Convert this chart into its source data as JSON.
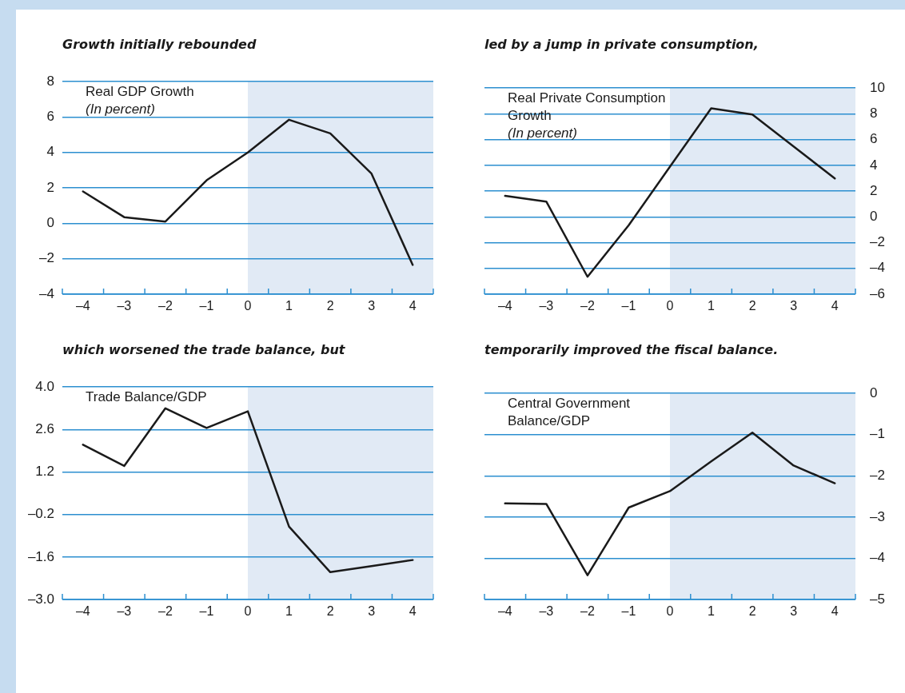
{
  "chart_data": [
    {
      "type": "line",
      "title": "Growth initially rebounded",
      "subtitle": "Real GDP Growth",
      "annotations": [
        "(In percent)"
      ],
      "x": [
        -4,
        -3,
        -2,
        -1,
        0,
        1,
        2,
        3,
        4
      ],
      "series": [
        {
          "color": "#1a1a1a",
          "values": [
            1.8,
            0.35,
            0.1,
            2.43,
            4.0,
            5.85,
            5.08,
            2.81,
            -2.35
          ]
        }
      ],
      "xlim": [
        -4.5,
        4.5
      ],
      "xticks": [
        {
          "value": -4.5,
          "label": null
        },
        {
          "value": -4,
          "label": "–4"
        },
        {
          "value": -3.5,
          "label": null
        },
        {
          "value": -3,
          "label": "–3"
        },
        {
          "value": -2.5,
          "label": null
        },
        {
          "value": -2,
          "label": "–2"
        },
        {
          "value": -1.5,
          "label": null
        },
        {
          "value": -1,
          "label": "–1"
        },
        {
          "value": -0.5,
          "label": null
        },
        0,
        {
          "value": 0.5,
          "label": null
        },
        1,
        {
          "value": 1.5,
          "label": null
        },
        2,
        {
          "value": 2.5,
          "label": null
        },
        3,
        {
          "value": 3.5,
          "label": null
        },
        4,
        {
          "value": 4.5,
          "label": null
        }
      ],
      "ylim": [
        -4,
        8
      ],
      "yticks": [
        {
          "value": -4,
          "label": "–4"
        },
        {
          "value": -2,
          "label": "–2"
        },
        0,
        2,
        4,
        6,
        8
      ],
      "bands": [
        {
          "axis": "x",
          "from": 0,
          "to": 4.5,
          "color": "#e1eaf5"
        }
      ],
      "grid": "y",
      "marker": "none",
      "line_style": "solid",
      "legend": false
    },
    {
      "type": "line",
      "title": "led by a jump in private consumption,",
      "subtitle": "Real Private Consumption Growth",
      "annotations": [
        "(In percent)"
      ],
      "x": [
        -4,
        -3,
        -2,
        -1,
        0,
        1,
        2,
        3,
        4
      ],
      "series": [
        {
          "color": "#1a1a1a",
          "values": [
            1.63,
            1.19,
            -4.65,
            -0.65,
            3.9,
            8.43,
            7.95,
            5.47,
            2.98
          ]
        }
      ],
      "xlim": [
        -4.5,
        4.5
      ],
      "xticks": [
        {
          "value": -4.5,
          "label": null
        },
        {
          "value": -4,
          "label": "–4"
        },
        {
          "value": -3.5,
          "label": null
        },
        {
          "value": -3,
          "label": "–3"
        },
        {
          "value": -2.5,
          "label": null
        },
        {
          "value": -2,
          "label": "–2"
        },
        {
          "value": -1.5,
          "label": null
        },
        {
          "value": -1,
          "label": "–1"
        },
        {
          "value": -0.5,
          "label": null
        },
        0,
        {
          "value": 0.5,
          "label": null
        },
        1,
        {
          "value": 1.5,
          "label": null
        },
        2,
        {
          "value": 2.5,
          "label": null
        },
        3,
        {
          "value": 3.5,
          "label": null
        },
        4,
        {
          "value": 4.5,
          "label": null
        }
      ],
      "ylim": [
        -6,
        10
      ],
      "yticks": [
        {
          "value": -6,
          "label": "–6"
        },
        {
          "value": -4,
          "label": "–4"
        },
        {
          "value": -2,
          "label": "–2"
        },
        0,
        2,
        4,
        6,
        8,
        10
      ],
      "bands": [
        {
          "axis": "x",
          "from": 0,
          "to": 4.5,
          "color": "#e1eaf5"
        }
      ],
      "grid": "y",
      "marker": "none",
      "line_style": "solid",
      "legend": false
    },
    {
      "type": "line",
      "title": "which worsened the trade balance, but",
      "subtitle": "Trade Balance/GDP",
      "x": [
        -4,
        -3,
        -2,
        -1,
        0,
        1,
        2,
        3,
        4
      ],
      "series": [
        {
          "color": "#1a1a1a",
          "values": [
            2.1,
            1.4,
            3.3,
            2.65,
            3.2,
            -0.6,
            -2.1,
            -1.9,
            -1.7
          ]
        }
      ],
      "xlim": [
        -4.5,
        4.5
      ],
      "xticks": [
        {
          "value": -4.5,
          "label": null
        },
        {
          "value": -4,
          "label": "–4"
        },
        {
          "value": -3.5,
          "label": null
        },
        {
          "value": -3,
          "label": "–3"
        },
        {
          "value": -2.5,
          "label": null
        },
        {
          "value": -2,
          "label": "–2"
        },
        {
          "value": -1.5,
          "label": null
        },
        {
          "value": -1,
          "label": "–1"
        },
        {
          "value": -0.5,
          "label": null
        },
        0,
        {
          "value": 0.5,
          "label": null
        },
        1,
        {
          "value": 1.5,
          "label": null
        },
        2,
        {
          "value": 2.5,
          "label": null
        },
        3,
        {
          "value": 3.5,
          "label": null
        },
        4,
        {
          "value": 4.5,
          "label": null
        }
      ],
      "ylim": [
        -3.0,
        4.0
      ],
      "yticks": [
        {
          "value": -3.0,
          "label": "–3.0"
        },
        {
          "value": -1.6,
          "label": "–1.6"
        },
        {
          "value": -0.2,
          "label": "–0.2"
        },
        1.2,
        2.6,
        {
          "value": 4.0,
          "label": "4.0"
        }
      ],
      "bands": [
        {
          "axis": "x",
          "from": 0,
          "to": 4.5,
          "color": "#e1eaf5"
        }
      ],
      "grid": "y",
      "marker": "none",
      "line_style": "solid",
      "legend": false
    },
    {
      "type": "line",
      "title": "temporarily improved the fiscal balance.",
      "subtitle": "Central Government Balance/GDP",
      "x": [
        -4,
        -3,
        -2,
        -1,
        0,
        1,
        2,
        3,
        4
      ],
      "series": [
        {
          "color": "#1a1a1a",
          "values": [
            -2.67,
            -2.68,
            -4.41,
            -2.77,
            -2.37,
            -1.65,
            -0.95,
            -1.75,
            -2.18
          ]
        }
      ],
      "xlim": [
        -4.5,
        4.5
      ],
      "xticks": [
        {
          "value": -4.5,
          "label": null
        },
        {
          "value": -4,
          "label": "–4"
        },
        {
          "value": -3.5,
          "label": null
        },
        {
          "value": -3,
          "label": "–3"
        },
        {
          "value": -2.5,
          "label": null
        },
        {
          "value": -2,
          "label": "–2"
        },
        {
          "value": -1.5,
          "label": null
        },
        {
          "value": -1,
          "label": "–1"
        },
        {
          "value": -0.5,
          "label": null
        },
        0,
        {
          "value": 0.5,
          "label": null
        },
        1,
        {
          "value": 1.5,
          "label": null
        },
        2,
        {
          "value": 2.5,
          "label": null
        },
        3,
        {
          "value": 3.5,
          "label": null
        },
        4,
        {
          "value": 4.5,
          "label": null
        }
      ],
      "ylim": [
        -5,
        0
      ],
      "yticks": [
        {
          "value": -5,
          "label": "–5"
        },
        {
          "value": -4,
          "label": "–4"
        },
        {
          "value": -3,
          "label": "–3"
        },
        {
          "value": -2,
          "label": "–2"
        },
        {
          "value": -1,
          "label": "–1"
        },
        0
      ],
      "bands": [
        {
          "axis": "x",
          "from": 0,
          "to": 4.5,
          "color": "#e1eaf5"
        }
      ],
      "grid": "y",
      "marker": "none",
      "line_style": "solid",
      "legend": false
    }
  ]
}
